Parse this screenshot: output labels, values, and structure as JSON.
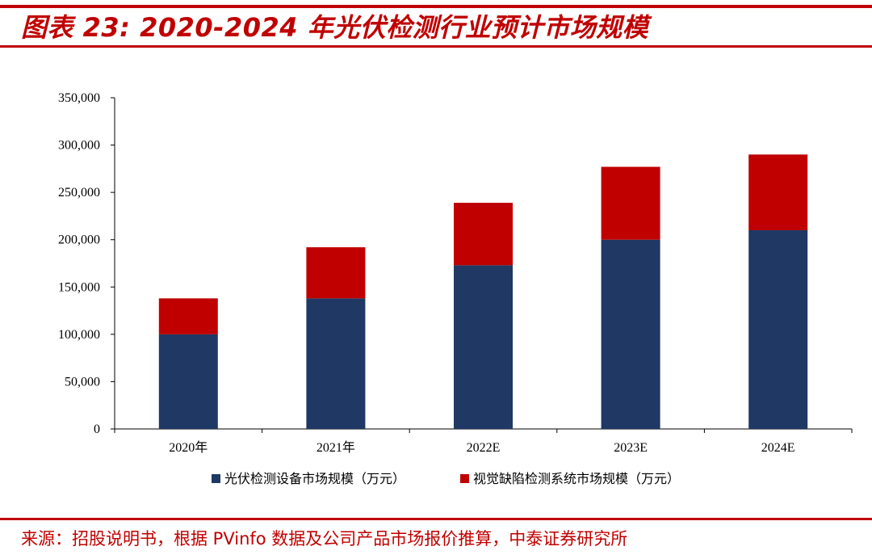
{
  "header": {
    "title": "图表 23: 2020-2024 年光伏检测行业预计市场规模"
  },
  "footer": {
    "source": "来源：招股说明书，根据 PVinfo 数据及公司产品市场报价推算，中泰证券研究所"
  },
  "chart_data": {
    "type": "bar",
    "stacked": true,
    "categories": [
      "2020年",
      "2021年",
      "2022E",
      "2023E",
      "2024E"
    ],
    "series": [
      {
        "name": "光伏检测设备市场规模（万元）",
        "color": "#1f3864",
        "values": [
          100000,
          138000,
          173000,
          200000,
          210000
        ]
      },
      {
        "name": "视觉缺陷检测系统市场规模（万元）",
        "color": "#c00000",
        "values": [
          38000,
          54000,
          66000,
          77000,
          80000
        ]
      }
    ],
    "ylim": [
      0,
      350000
    ],
    "yticks": [
      0,
      50000,
      100000,
      150000,
      200000,
      250000,
      300000,
      350000
    ],
    "ytick_labels": [
      "0",
      "50,000",
      "100,000",
      "150,000",
      "200,000",
      "250,000",
      "300,000",
      "350,000"
    ],
    "grid": false,
    "legend": "bottom",
    "xlabel": "",
    "ylabel": ""
  }
}
